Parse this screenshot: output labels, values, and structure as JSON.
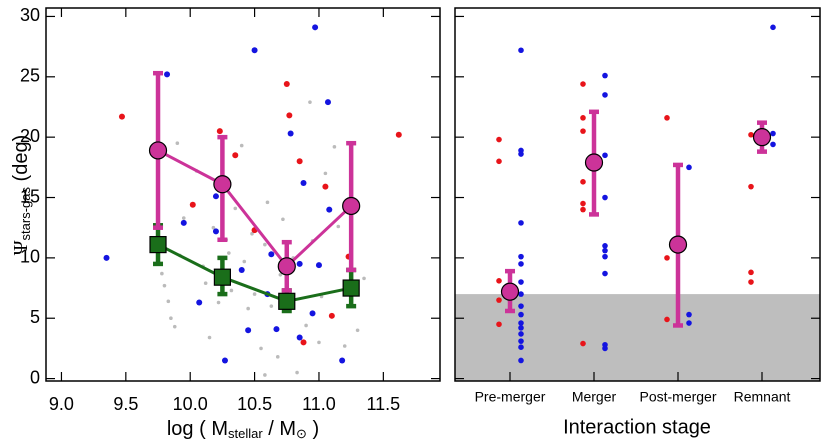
{
  "chart_data": [
    {
      "type": "scatter",
      "x_label": [
        "log ( M",
        "stellar",
        " / M",
        "⊙",
        " )"
      ],
      "y_label": [
        "Ψ",
        "stars-gas",
        " (deg)"
      ],
      "xlim": [
        8.88,
        11.94
      ],
      "xticks": [
        {
          "value": 9,
          "label": "9.0"
        },
        {
          "value": 9.5,
          "label": "9.5"
        },
        {
          "value": 10,
          "label": "10.0"
        },
        {
          "value": 10.5,
          "label": "10.5"
        },
        {
          "value": 11,
          "label": "11.0"
        },
        {
          "value": 11.5,
          "label": "11.5"
        }
      ],
      "ylim": [
        -0.2,
        30.7
      ],
      "yticks": [
        0,
        5,
        10,
        15,
        20,
        25,
        30
      ],
      "scatter_groups": [
        {
          "color": "#bbbbbb",
          "size": 1.8,
          "x": [
            9.78,
            9.8,
            9.83,
            9.85,
            9.88,
            9.9,
            9.95,
            10.05,
            10.1,
            10.12,
            10.15,
            10.18,
            10.22,
            10.28,
            10.3,
            10.35,
            10.4,
            10.42,
            10.45,
            10.48,
            10.5,
            10.55,
            10.58,
            10.6,
            10.63,
            10.68,
            10.7,
            10.72,
            10.8,
            10.83,
            10.9,
            10.93,
            10.95,
            11.0,
            11.02,
            11.12,
            11.15,
            11.2,
            11.3,
            11.35,
            10.58,
            10.32,
            9.92,
            11.05,
            10.75
          ],
          "y": [
            8.7,
            7.7,
            6.4,
            5.0,
            4.3,
            19.5,
            13.3,
            17.2,
            9.3,
            7.9,
            3.4,
            12.5,
            6.3,
            11.5,
            10.4,
            14.1,
            19.3,
            9.7,
            5.8,
            12.0,
            7.0,
            2.5,
            11.1,
            14.6,
            6.0,
            1.8,
            8.6,
            13.2,
            10.0,
            0.5,
            4.4,
            22.9,
            11.4,
            3.0,
            6.8,
            19.2,
            12.6,
            2.7,
            4.0,
            8.3,
            0.3,
            7.3,
            10.2,
            17.0,
            5.6
          ]
        },
        {
          "color": "#e8141a",
          "size": 3,
          "x": [
            9.47,
            10.23,
            10.75,
            10.77,
            10.85,
            11.05,
            11.62,
            10.02,
            10.88,
            11.23,
            10.35,
            11.1,
            10.5
          ],
          "y": [
            21.7,
            20.5,
            24.4,
            21.8,
            18.0,
            15.9,
            20.2,
            14.4,
            3.0,
            10.1,
            18.5,
            5.2,
            12.3
          ]
        },
        {
          "color": "#1414e0",
          "size": 3,
          "x": [
            9.35,
            9.82,
            10.5,
            10.97,
            10.78,
            11.07,
            10.2,
            9.95,
            10.63,
            10.88,
            11.08,
            10.4,
            10.07,
            10.45,
            10.85,
            10.67,
            11.18,
            10.85,
            10.2,
            10.95,
            11.0,
            10.6,
            10.27
          ],
          "y": [
            10.0,
            25.2,
            27.2,
            29.1,
            20.3,
            22.9,
            15.1,
            12.9,
            10.3,
            16.2,
            14.0,
            9.0,
            6.3,
            4.0,
            3.4,
            4.1,
            1.5,
            9.5,
            12.2,
            5.4,
            9.4,
            7.0,
            1.5
          ]
        }
      ],
      "binned": [
        {
          "color": "#1a6e1a",
          "marker": "square",
          "x": [
            9.75,
            10.25,
            10.75,
            11.25
          ],
          "values": [
            11.1,
            8.4,
            6.4,
            7.5
          ],
          "lower": [
            9.5,
            7.0,
            5.6,
            6.0
          ],
          "upper": [
            12.7,
            10.0,
            7.3,
            9.0
          ]
        },
        {
          "color": "#cc3399",
          "marker": "circle",
          "x": [
            9.75,
            10.25,
            10.75,
            11.25
          ],
          "values": [
            18.9,
            16.1,
            9.3,
            14.3
          ],
          "lower": [
            12.5,
            11.5,
            7.3,
            9.0
          ],
          "upper": [
            25.3,
            20.0,
            11.3,
            19.5
          ]
        }
      ]
    },
    {
      "type": "strip",
      "x_label": "Interaction stage",
      "categories": [
        "Pre-merger",
        "Merger",
        "Post-merger",
        "Remnant"
      ],
      "ylim": [
        -0.2,
        30.7
      ],
      "yticks": [
        0,
        5,
        10,
        15,
        20,
        25,
        30
      ],
      "shade_ymax": 7,
      "shade_color": "#bebebe",
      "point_groups": [
        {
          "color": "#e8141a",
          "values": [
            [
              19.8,
              18.0,
              8.1,
              6.5,
              4.5
            ],
            [
              24.4,
              21.6,
              20.5,
              16.3,
              14.5,
              14.0,
              2.9
            ],
            [
              21.6,
              10.0,
              4.9
            ],
            [
              20.2,
              15.9,
              8.8,
              8.0
            ]
          ]
        },
        {
          "color": "#1414e0",
          "values": [
            [
              27.2,
              18.9,
              18.6,
              12.9,
              10.1,
              9.5,
              8.0,
              7.0,
              6.0,
              5.3,
              4.6,
              4.2,
              3.7,
              3.1,
              2.6,
              1.5
            ],
            [
              25.1,
              23.5,
              18.5,
              15.0,
              11.0,
              10.6,
              10.1,
              8.7,
              2.8,
              2.5
            ],
            [
              17.5,
              5.3,
              4.6
            ],
            [
              29.1,
              20.3,
              19.4
            ]
          ]
        }
      ],
      "means": {
        "color": "#cc3399",
        "values": [
          7.2,
          17.9,
          11.1,
          20.0
        ],
        "lower": [
          5.6,
          13.6,
          4.4,
          18.8
        ],
        "upper": [
          8.9,
          22.1,
          17.7,
          21.2
        ]
      }
    }
  ]
}
